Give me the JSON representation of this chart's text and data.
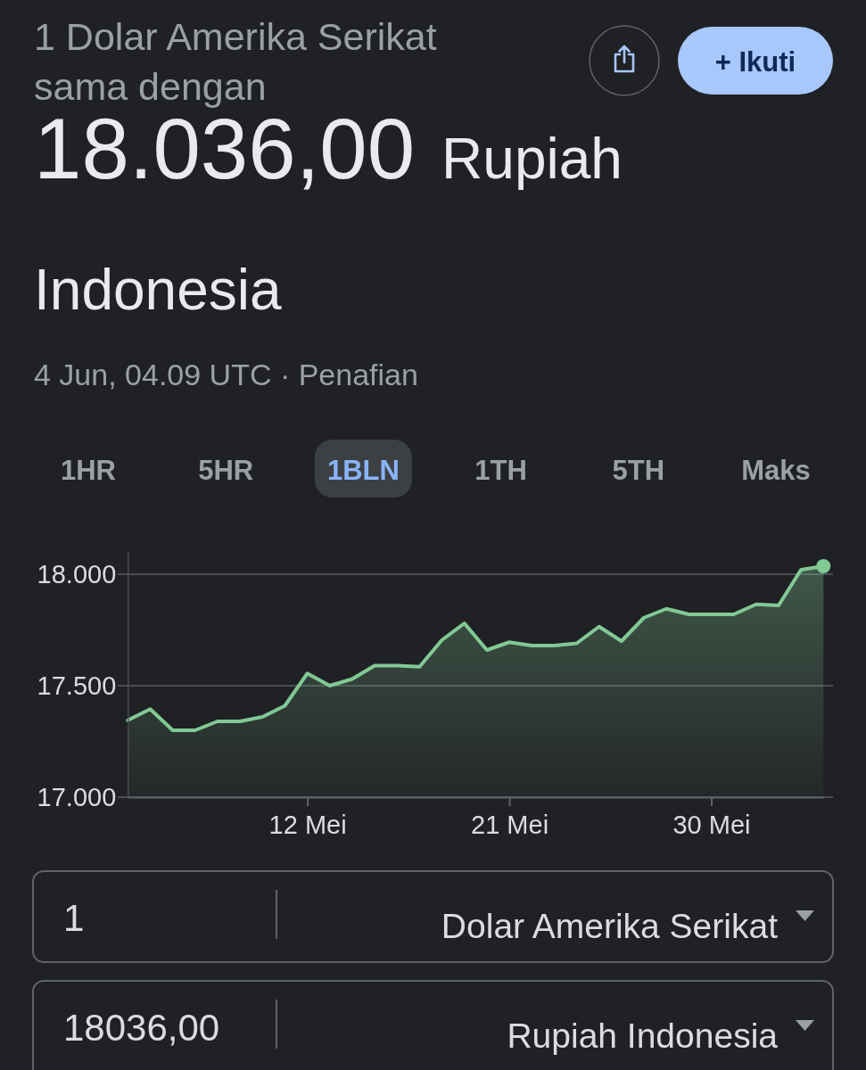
{
  "chart_data": {
    "type": "area",
    "title": "1 Dolar Amerika Serikat sama dengan",
    "subtitle": "4 Jun, 04.09 UTC · Penafian",
    "annotations": [
      "18.036,00",
      "Rupiah",
      "Indonesia",
      "+ Ikuti",
      "1HR",
      "5HR",
      "1BLN",
      "1TH",
      "5TH",
      "Maks",
      "1",
      "Dolar Amerika Serikat",
      "18036,00",
      "Rupiah Indonesia"
    ],
    "x": [
      "--05-04",
      "--05-05",
      "--05-06",
      "--05-07",
      "--05-08",
      "--05-09",
      "--05-10",
      "--05-11",
      "--05-12",
      "--05-13",
      "--05-14",
      "--05-15",
      "--05-16",
      "--05-17",
      "--05-18",
      "--05-19",
      "--05-20",
      "--05-21",
      "--05-22",
      "--05-23",
      "--05-24",
      "--05-25",
      "--05-26",
      "--05-27",
      "--05-28",
      "--05-29",
      "--05-30",
      "--05-31",
      "--06-01",
      "--06-02",
      "--06-03",
      "--06-04"
    ],
    "series": [
      {
        "color": "#81c995",
        "values": [
          17345,
          17395,
          17300,
          17300,
          17340,
          17340,
          17360,
          17410,
          17555,
          17500,
          17530,
          17590,
          17590,
          17585,
          17705,
          17780,
          17660,
          17695,
          17680,
          17680,
          17690,
          17765,
          17700,
          17805,
          17845,
          17820,
          17820,
          17820,
          17865,
          17860,
          18020,
          18036
        ]
      },
      {
        "type": "scatter",
        "color": "#81c995",
        "x": [
          "--06-04"
        ],
        "values": [
          18036
        ]
      }
    ],
    "xlim": [
      "--05-04",
      "--06-04"
    ],
    "xticks": [
      {
        "value": "--05-12",
        "label": "12 Mei"
      },
      {
        "value": "--05-21",
        "label": "21 Mei"
      },
      {
        "value": "--05-30",
        "label": "30 Mei"
      }
    ],
    "ylim": [
      17000,
      18100
    ],
    "yticks": [
      {
        "value": 17000,
        "label": "17.000"
      },
      {
        "value": 17500,
        "label": "17.500"
      },
      {
        "value": 18000,
        "label": "18.000"
      }
    ],
    "grid": "y"
  }
}
